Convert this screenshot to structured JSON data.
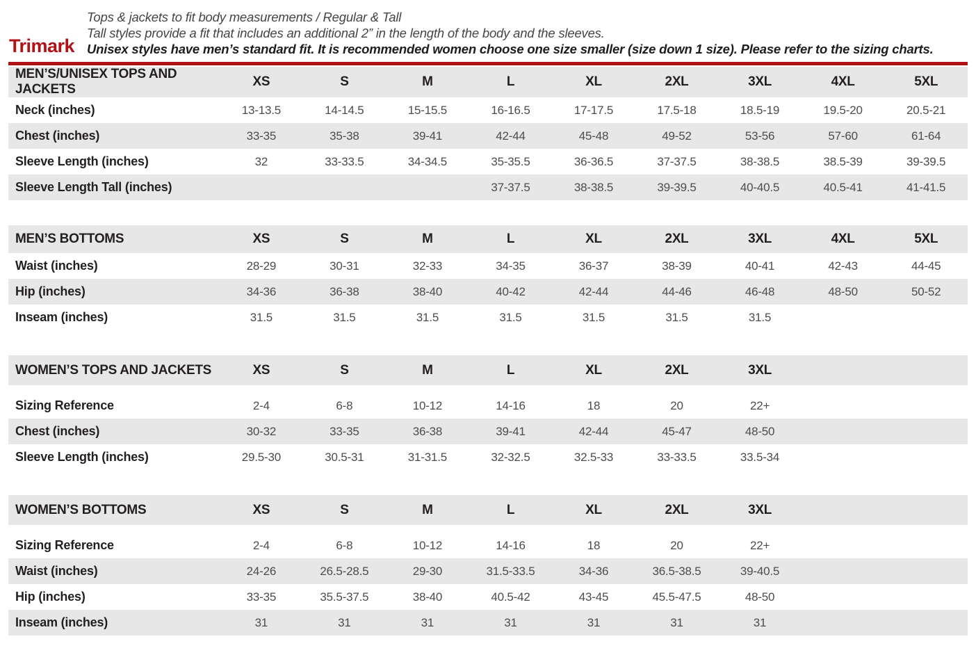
{
  "header": {
    "brand": "Trimark",
    "accent_color": "#b01218",
    "line1": "Tops & jackets to fit body measurements / Regular & Tall",
    "line2": "Tall styles provide a fit that includes an additional 2” in the length of the body and the sleeves.",
    "line3": "Unisex styles have men’s standard fit. It is recommended women choose one size smaller (size down 1 size).  Please refer to the sizing charts."
  },
  "tables": [
    {
      "title": "MEN’S/UNISEX TOPS AND JACKETS",
      "sizes": [
        "XS",
        "S",
        "M",
        "L",
        "XL",
        "2XL",
        "3XL",
        "4XL",
        "5XL"
      ],
      "rows": [
        {
          "label": "Neck (inches)",
          "values": [
            "13-13.5",
            "14-14.5",
            "15-15.5",
            "16-16.5",
            "17-17.5",
            "17.5-18",
            "18.5-19",
            "19.5-20",
            "20.5-21"
          ]
        },
        {
          "label": "Chest (inches)",
          "values": [
            "33-35",
            "35-38",
            "39-41",
            "42-44",
            "45-48",
            "49-52",
            "53-56",
            "57-60",
            "61-64"
          ]
        },
        {
          "label": "Sleeve Length (inches)",
          "values": [
            "32",
            "33-33.5",
            "34-34.5",
            "35-35.5",
            "36-36.5",
            "37-37.5",
            "38-38.5",
            "38.5-39",
            "39-39.5"
          ]
        },
        {
          "label": "Sleeve Length Tall (inches)",
          "values": [
            "",
            "",
            "",
            "37-37.5",
            "38-38.5",
            "39-39.5",
            "40-40.5",
            "40.5-41",
            "41-41.5"
          ]
        }
      ]
    },
    {
      "title": "MEN’S BOTTOMS",
      "sizes": [
        "XS",
        "S",
        "M",
        "L",
        "XL",
        "2XL",
        "3XL",
        "4XL",
        "5XL"
      ],
      "rows": [
        {
          "label": "Waist (inches)",
          "values": [
            "28-29",
            "30-31",
            "32-33",
            "34-35",
            "36-37",
            "38-39",
            "40-41",
            "42-43",
            "44-45"
          ]
        },
        {
          "label": "Hip (inches)",
          "values": [
            "34-36",
            "36-38",
            "38-40",
            "40-42",
            "42-44",
            "44-46",
            "46-48",
            "48-50",
            "50-52"
          ]
        },
        {
          "label": "Inseam (inches)",
          "values": [
            "31.5",
            "31.5",
            "31.5",
            "31.5",
            "31.5",
            "31.5",
            "31.5",
            "",
            ""
          ]
        }
      ]
    },
    {
      "title": "WOMEN’S TOPS AND JACKETS",
      "sizes": [
        "XS",
        "S",
        "M",
        "L",
        "XL",
        "2XL",
        "3XL",
        "",
        ""
      ],
      "rows": [
        {
          "label": "Sizing Reference",
          "values": [
            "2-4",
            "6-8",
            "10-12",
            "14-16",
            "18",
            "20",
            "22+",
            "",
            ""
          ]
        },
        {
          "label": "Chest (inches)",
          "values": [
            "30-32",
            "33-35",
            "36-38",
            "39-41",
            "42-44",
            "45-47",
            "48-50",
            "",
            ""
          ]
        },
        {
          "label": "Sleeve Length (inches)",
          "values": [
            "29.5-30",
            "30.5-31",
            "31-31.5",
            "32-32.5",
            "32.5-33",
            "33-33.5",
            "33.5-34",
            "",
            ""
          ]
        }
      ]
    },
    {
      "title": "WOMEN’S BOTTOMS",
      "sizes": [
        "XS",
        "S",
        "M",
        "L",
        "XL",
        "2XL",
        "3XL",
        "",
        ""
      ],
      "rows": [
        {
          "label": "Sizing Reference",
          "values": [
            "2-4",
            "6-8",
            "10-12",
            "14-16",
            "18",
            "20",
            "22+",
            "",
            ""
          ]
        },
        {
          "label": "Waist (inches)",
          "values": [
            "24-26",
            "26.5-28.5",
            "29-30",
            "31.5-33.5",
            "34-36",
            "36.5-38.5",
            "39-40.5",
            "",
            ""
          ]
        },
        {
          "label": "Hip (inches)",
          "values": [
            "33-35",
            "35.5-37.5",
            "38-40",
            "40.5-42",
            "43-45",
            "45.5-47.5",
            "48-50",
            "",
            ""
          ]
        },
        {
          "label": "Inseam (inches)",
          "values": [
            "31",
            "31",
            "31",
            "31",
            "31",
            "31",
            "31",
            "",
            ""
          ]
        }
      ]
    }
  ]
}
